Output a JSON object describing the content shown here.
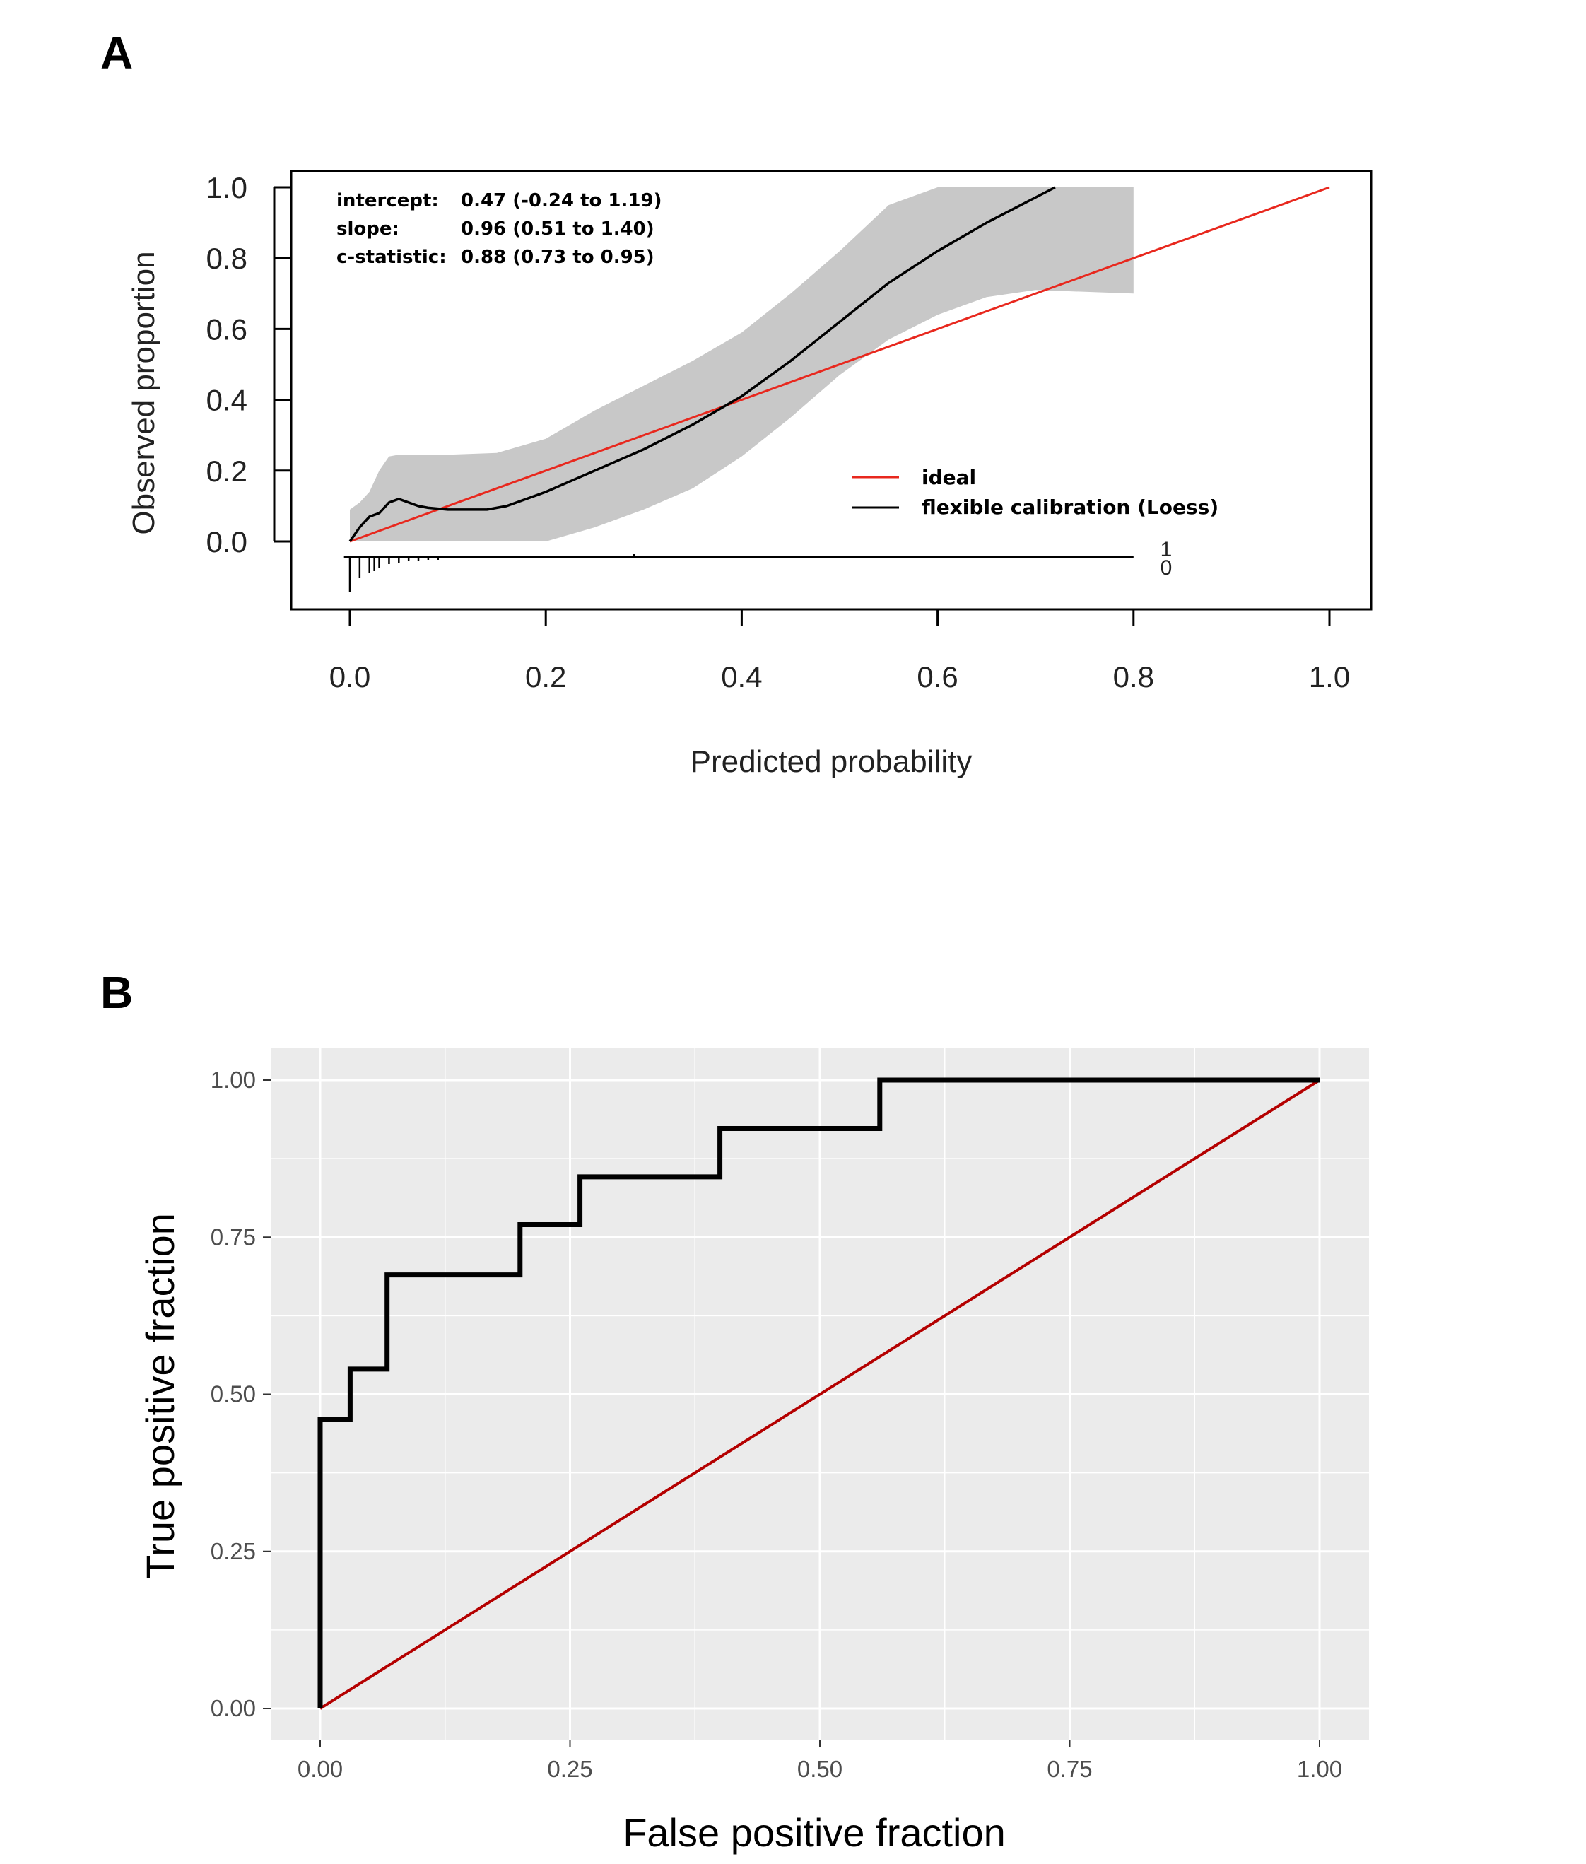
{
  "panel_labels": {
    "a": "A",
    "b": "B"
  },
  "colors": {
    "ideal_a": "#e8281e",
    "ideal_a_over_band": "#cc8078",
    "loess": "#000000",
    "band": "#c8c8c8",
    "diag_b": "#b40000",
    "roc": "#000000",
    "panel_bg_b": "#ebebeb",
    "grid_b": "#ffffff"
  },
  "chart_data": [
    {
      "id": "calibration",
      "type": "line",
      "title": "",
      "xlabel": "Predicted probability",
      "ylabel": "Observed proportion",
      "xlim": [
        0,
        1
      ],
      "ylim": [
        0,
        1
      ],
      "xticks": [
        "0.0",
        "0.2",
        "0.4",
        "0.6",
        "0.8",
        "1.0"
      ],
      "yticks": [
        "0.0",
        "0.2",
        "0.4",
        "0.6",
        "0.8",
        "1.0"
      ],
      "grid": false,
      "legend_position": "bottom-right",
      "stats": [
        {
          "label": "intercept:",
          "value": "0.47 (-0.24 to 1.19)"
        },
        {
          "label": "slope:",
          "value": "0.96 (0.51 to 1.40)"
        },
        {
          "label": "c-statistic:",
          "value": "0.88 (0.73 to 0.95)"
        }
      ],
      "series": [
        {
          "name": "ideal",
          "x": [
            0,
            1
          ],
          "y": [
            0,
            1
          ]
        },
        {
          "name": "flexible calibration (Loess)",
          "x": [
            0.0,
            0.005,
            0.01,
            0.02,
            0.03,
            0.04,
            0.05,
            0.06,
            0.07,
            0.08,
            0.1,
            0.12,
            0.14,
            0.16,
            0.2,
            0.25,
            0.3,
            0.35,
            0.4,
            0.45,
            0.5,
            0.55,
            0.6,
            0.65,
            0.72
          ],
          "y": [
            0.0,
            0.02,
            0.04,
            0.07,
            0.08,
            0.11,
            0.12,
            0.11,
            0.1,
            0.095,
            0.09,
            0.09,
            0.09,
            0.1,
            0.14,
            0.2,
            0.26,
            0.33,
            0.41,
            0.51,
            0.62,
            0.73,
            0.82,
            0.9,
            1.0
          ]
        }
      ],
      "band": {
        "x": [
          0.0,
          0.01,
          0.02,
          0.03,
          0.04,
          0.05,
          0.1,
          0.15,
          0.2,
          0.25,
          0.3,
          0.35,
          0.4,
          0.45,
          0.5,
          0.55,
          0.6,
          0.65,
          0.7,
          0.8
        ],
        "upper": [
          0.09,
          0.11,
          0.14,
          0.2,
          0.24,
          0.245,
          0.245,
          0.25,
          0.29,
          0.37,
          0.44,
          0.51,
          0.59,
          0.7,
          0.82,
          0.95,
          1.0,
          1.0,
          1.0,
          1.0
        ],
        "lower": [
          0.0,
          0.0,
          0.0,
          0.0,
          0.0,
          0.0,
          0.0,
          0.0,
          0.0,
          0.04,
          0.09,
          0.15,
          0.24,
          0.35,
          0.47,
          0.57,
          0.64,
          0.69,
          0.71,
          0.7
        ]
      },
      "rug": {
        "labels": [
          "1",
          "0"
        ],
        "events_x": [
          0.29
        ],
        "nonevents_x": [
          0.0,
          0.01,
          0.02,
          0.025,
          0.03,
          0.04,
          0.05,
          0.06,
          0.07,
          0.08,
          0.09
        ]
      }
    },
    {
      "id": "roc",
      "type": "line",
      "title": "",
      "xlabel": "False positive fraction",
      "ylabel": "True positive fraction",
      "xlim": [
        0,
        1
      ],
      "ylim": [
        0,
        1
      ],
      "xticks": [
        "0.00",
        "0.25",
        "0.50",
        "0.75",
        "1.00"
      ],
      "yticks": [
        "0.00",
        "0.25",
        "0.50",
        "0.75",
        "1.00"
      ],
      "grid": true,
      "series": [
        {
          "name": "",
          "x": [
            0,
            0,
            0.03,
            0.03,
            0.067,
            0.067,
            0.2,
            0.2,
            0.26,
            0.26,
            0.4,
            0.4,
            0.56,
            0.56,
            1.0
          ],
          "y": [
            0,
            0.46,
            0.46,
            0.54,
            0.54,
            0.69,
            0.69,
            0.77,
            0.77,
            0.846,
            0.846,
            0.923,
            0.923,
            1.0,
            1.0
          ]
        },
        {
          "name": "",
          "x": [
            0,
            1
          ],
          "y": [
            0,
            1
          ]
        }
      ]
    }
  ]
}
